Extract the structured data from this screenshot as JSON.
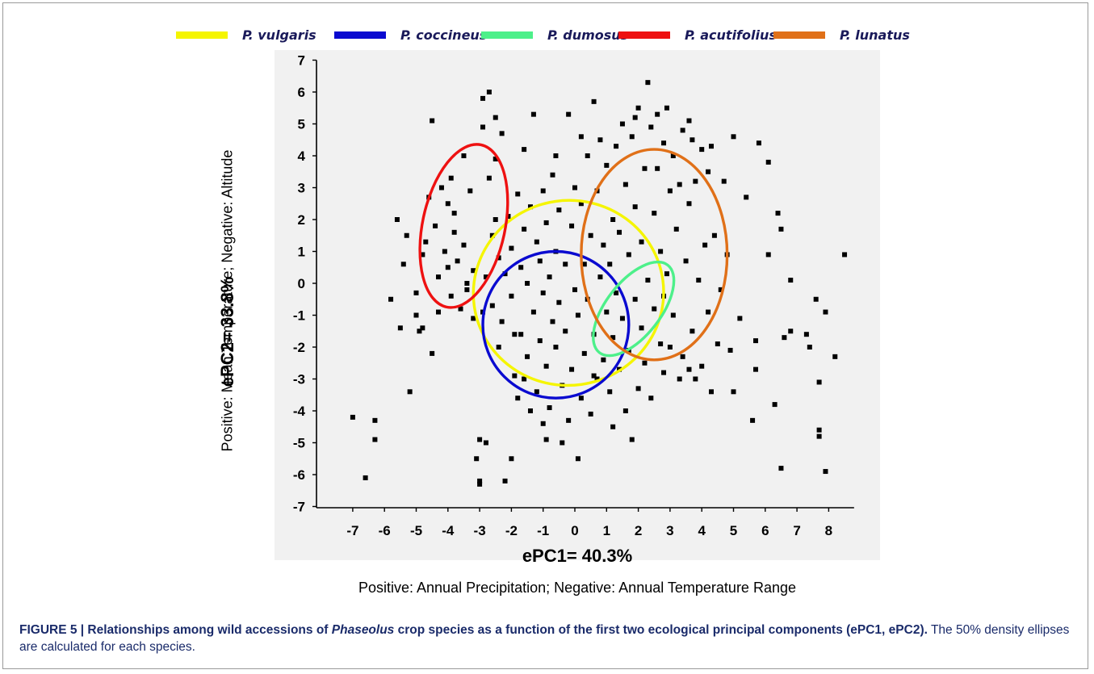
{
  "legend": [
    {
      "label": "P. vulgaris",
      "color": "#f5f500"
    },
    {
      "label": "P. coccineus",
      "color": "#0a0ad0"
    },
    {
      "label": "P. dumosus",
      "color": "#4df08a"
    },
    {
      "label": "P. acutifolius",
      "color": "#ee1111"
    },
    {
      "label": "P. lunatus",
      "color": "#e07018"
    }
  ],
  "axes": {
    "xlabel": "ePC1= 40.3%",
    "xsub": "Positive: Annual Precipitation; Negative: Annual Temperature Range",
    "ylabel": "ePC2= 33.8%",
    "ysub": "Positive: Mean Temperature; Negative: Altitude"
  },
  "caption": {
    "bold_prefix": "FIGURE 5 | Relationships among wild accessions of ",
    "bold_italic": "Phaseolus",
    "bold_suffix": " crop species as a function of the first two ecological principal components (ePC1, ePC2).",
    "rest": " The 50% density ellipses are calculated for each species."
  },
  "chart_data": {
    "type": "scatter",
    "xlabel": "ePC1= 40.3%",
    "ylabel": "ePC2= 33.8%",
    "xlim": [
      -7.6,
      8.8
    ],
    "ylim": [
      -7,
      7
    ],
    "xticks": [
      -7,
      -6,
      -5,
      -4,
      -3,
      -2,
      -1,
      0,
      1,
      2,
      3,
      4,
      5,
      6,
      7,
      8
    ],
    "yticks": [
      7,
      6,
      5,
      4,
      3,
      2,
      1,
      0,
      -1,
      -2,
      -3,
      -4,
      -5,
      -6,
      -7
    ],
    "grid": false,
    "legend_position": "top",
    "ellipses": [
      {
        "species": "P. vulgaris",
        "color": "#f5f500",
        "cx": -0.2,
        "cy": -0.3,
        "rx": 3.0,
        "ry": 2.9,
        "angle": 8
      },
      {
        "species": "P. coccineus",
        "color": "#0a0ad0",
        "cx": -0.6,
        "cy": -1.3,
        "rx": 2.3,
        "ry": 2.3,
        "angle": 0
      },
      {
        "species": "P. dumosus",
        "color": "#4df08a",
        "cx": 1.85,
        "cy": -0.8,
        "rx": 1.75,
        "ry": 0.85,
        "angle": 52
      },
      {
        "species": "P. acutifolius",
        "color": "#ee1111",
        "cx": -3.5,
        "cy": 1.8,
        "rx": 1.3,
        "ry": 2.6,
        "angle": -12
      },
      {
        "species": "P. lunatus",
        "color": "#e07018",
        "cx": 2.5,
        "cy": 0.9,
        "rx": 2.3,
        "ry": 3.3,
        "angle": 0
      }
    ],
    "points": [
      [
        -7.0,
        -4.2
      ],
      [
        -6.6,
        -6.1
      ],
      [
        -6.3,
        -4.3
      ],
      [
        -6.3,
        -4.9
      ],
      [
        -5.8,
        -0.5
      ],
      [
        -5.6,
        2.0
      ],
      [
        -5.5,
        -1.4
      ],
      [
        -5.4,
        0.6
      ],
      [
        -5.3,
        1.5
      ],
      [
        -5.2,
        -3.4
      ],
      [
        -5.0,
        -0.3
      ],
      [
        -5.0,
        -1.0
      ],
      [
        -4.9,
        -1.5
      ],
      [
        -4.8,
        0.9
      ],
      [
        -4.7,
        1.3
      ],
      [
        -4.6,
        2.7
      ],
      [
        -4.5,
        5.1
      ],
      [
        -4.5,
        -2.2
      ],
      [
        -4.4,
        1.8
      ],
      [
        -4.3,
        0.2
      ],
      [
        -4.3,
        -0.9
      ],
      [
        -4.2,
        3.0
      ],
      [
        -4.1,
        1.0
      ],
      [
        -4.0,
        2.5
      ],
      [
        -4.0,
        0.5
      ],
      [
        -3.9,
        -0.4
      ],
      [
        -3.8,
        1.6
      ],
      [
        -3.8,
        2.2
      ],
      [
        -3.7,
        0.7
      ],
      [
        -3.6,
        -0.8
      ],
      [
        -3.5,
        4.0
      ],
      [
        -3.5,
        1.2
      ],
      [
        -3.4,
        0.0
      ],
      [
        -3.3,
        2.9
      ],
      [
        -3.2,
        0.4
      ],
      [
        -3.2,
        -1.1
      ],
      [
        -3.1,
        -5.5
      ],
      [
        -3.0,
        -4.9
      ],
      [
        -3.0,
        -6.2
      ],
      [
        -3.0,
        -6.3
      ],
      [
        -2.9,
        4.9
      ],
      [
        -2.9,
        5.8
      ],
      [
        -2.8,
        0.2
      ],
      [
        -2.8,
        -5.0
      ],
      [
        -2.7,
        6.0
      ],
      [
        -2.7,
        3.3
      ],
      [
        -2.6,
        1.5
      ],
      [
        -2.6,
        -0.7
      ],
      [
        -2.5,
        5.2
      ],
      [
        -2.5,
        2.0
      ],
      [
        -2.4,
        0.8
      ],
      [
        -2.4,
        -2.0
      ],
      [
        -2.3,
        4.7
      ],
      [
        -2.3,
        -1.2
      ],
      [
        -2.2,
        0.3
      ],
      [
        -2.2,
        -6.2
      ],
      [
        -2.1,
        2.1
      ],
      [
        -2.0,
        -5.5
      ],
      [
        -2.0,
        -0.4
      ],
      [
        -2.0,
        1.1
      ],
      [
        -1.9,
        -2.9
      ],
      [
        -1.8,
        2.8
      ],
      [
        -1.8,
        -3.6
      ],
      [
        -1.7,
        0.5
      ],
      [
        -1.7,
        -1.6
      ],
      [
        -1.6,
        1.7
      ],
      [
        -1.6,
        -3.0
      ],
      [
        -1.5,
        0.0
      ],
      [
        -1.5,
        -2.3
      ],
      [
        -1.4,
        -4.0
      ],
      [
        -1.4,
        2.4
      ],
      [
        -1.3,
        5.3
      ],
      [
        -1.3,
        -0.9
      ],
      [
        -1.2,
        1.3
      ],
      [
        -1.2,
        -3.4
      ],
      [
        -1.1,
        -1.8
      ],
      [
        -1.1,
        0.7
      ],
      [
        -1.0,
        -4.4
      ],
      [
        -1.0,
        2.9
      ],
      [
        -1.0,
        -0.3
      ],
      [
        -0.9,
        1.9
      ],
      [
        -0.9,
        -2.6
      ],
      [
        -0.8,
        0.2
      ],
      [
        -0.8,
        -3.9
      ],
      [
        -0.7,
        3.4
      ],
      [
        -0.7,
        -1.2
      ],
      [
        -0.6,
        1.0
      ],
      [
        -0.6,
        -2.0
      ],
      [
        -0.5,
        -0.6
      ],
      [
        -0.5,
        2.3
      ],
      [
        -0.4,
        -3.2
      ],
      [
        -0.4,
        -5.0
      ],
      [
        -0.3,
        0.6
      ],
      [
        -0.3,
        -1.5
      ],
      [
        -0.2,
        5.3
      ],
      [
        -0.2,
        -4.3
      ],
      [
        -0.1,
        1.8
      ],
      [
        -0.1,
        -2.7
      ],
      [
        0.0,
        -0.2
      ],
      [
        0.0,
        3.0
      ],
      [
        0.1,
        -5.5
      ],
      [
        0.1,
        -1.0
      ],
      [
        0.2,
        2.5
      ],
      [
        0.2,
        -3.6
      ],
      [
        0.3,
        0.6
      ],
      [
        0.3,
        -2.2
      ],
      [
        0.4,
        4.0
      ],
      [
        0.4,
        -0.5
      ],
      [
        0.5,
        -4.1
      ],
      [
        0.5,
        1.5
      ],
      [
        0.6,
        5.7
      ],
      [
        0.6,
        -1.6
      ],
      [
        0.7,
        2.9
      ],
      [
        0.7,
        -3.0
      ],
      [
        0.8,
        0.2
      ],
      [
        0.8,
        4.5
      ],
      [
        0.9,
        -2.4
      ],
      [
        0.9,
        1.2
      ],
      [
        1.0,
        -0.9
      ],
      [
        1.0,
        3.7
      ],
      [
        1.1,
        -3.4
      ],
      [
        1.1,
        0.6
      ],
      [
        1.2,
        2.0
      ],
      [
        1.2,
        -1.7
      ],
      [
        1.3,
        4.3
      ],
      [
        1.3,
        -0.3
      ],
      [
        1.4,
        -2.7
      ],
      [
        1.4,
        1.6
      ],
      [
        1.5,
        5.0
      ],
      [
        1.5,
        -1.1
      ],
      [
        1.6,
        3.1
      ],
      [
        1.6,
        -4.0
      ],
      [
        1.7,
        0.9
      ],
      [
        1.7,
        -2.1
      ],
      [
        1.8,
        4.6
      ],
      [
        1.8,
        -4.9
      ],
      [
        1.9,
        -0.5
      ],
      [
        1.9,
        2.4
      ],
      [
        2.0,
        -3.3
      ],
      [
        2.0,
        5.5
      ],
      [
        2.1,
        1.3
      ],
      [
        2.1,
        -1.4
      ],
      [
        2.2,
        3.6
      ],
      [
        2.2,
        -2.5
      ],
      [
        2.3,
        0.1
      ],
      [
        2.3,
        6.3
      ],
      [
        2.4,
        4.9
      ],
      [
        2.4,
        -3.6
      ],
      [
        2.5,
        2.2
      ],
      [
        2.5,
        -0.8
      ],
      [
        2.6,
        5.3
      ],
      [
        2.6,
        3.6
      ],
      [
        2.7,
        -1.9
      ],
      [
        2.7,
        1.0
      ],
      [
        2.8,
        4.4
      ],
      [
        2.8,
        -2.8
      ],
      [
        2.9,
        5.5
      ],
      [
        2.9,
        0.3
      ],
      [
        3.0,
        2.9
      ],
      [
        3.0,
        -2.0
      ],
      [
        3.1,
        4.0
      ],
      [
        3.1,
        -1.0
      ],
      [
        3.2,
        1.7
      ],
      [
        3.3,
        -3.0
      ],
      [
        3.3,
        3.1
      ],
      [
        3.4,
        4.8
      ],
      [
        3.4,
        -2.3
      ],
      [
        3.5,
        0.7
      ],
      [
        3.6,
        -2.7
      ],
      [
        3.6,
        2.5
      ],
      [
        3.7,
        4.5
      ],
      [
        3.7,
        -1.5
      ],
      [
        3.8,
        3.2
      ],
      [
        3.8,
        -3.0
      ],
      [
        3.9,
        0.1
      ],
      [
        4.0,
        4.2
      ],
      [
        4.0,
        -2.6
      ],
      [
        4.1,
        1.2
      ],
      [
        4.2,
        -0.9
      ],
      [
        4.2,
        3.5
      ],
      [
        4.3,
        -3.4
      ],
      [
        4.4,
        1.5
      ],
      [
        4.5,
        -1.9
      ],
      [
        4.6,
        -0.2
      ],
      [
        4.7,
        3.2
      ],
      [
        4.8,
        0.9
      ],
      [
        4.9,
        -2.1
      ],
      [
        5.0,
        4.6
      ],
      [
        5.0,
        -3.4
      ],
      [
        5.2,
        -1.1
      ],
      [
        5.4,
        2.7
      ],
      [
        5.6,
        -4.3
      ],
      [
        5.7,
        -1.8
      ],
      [
        5.7,
        -2.7
      ],
      [
        5.8,
        4.4
      ],
      [
        6.1,
        3.8
      ],
      [
        6.1,
        0.9
      ],
      [
        6.3,
        -3.8
      ],
      [
        6.4,
        2.2
      ],
      [
        6.5,
        1.7
      ],
      [
        6.5,
        -5.8
      ],
      [
        6.6,
        -1.7
      ],
      [
        6.8,
        0.1
      ],
      [
        6.8,
        -1.5
      ],
      [
        7.3,
        -1.6
      ],
      [
        7.4,
        -2.0
      ],
      [
        7.6,
        -0.5
      ],
      [
        7.7,
        -3.1
      ],
      [
        7.7,
        -4.6
      ],
      [
        7.7,
        -4.8
      ],
      [
        7.9,
        -0.9
      ],
      [
        7.9,
        -5.9
      ],
      [
        8.2,
        -2.3
      ],
      [
        8.5,
        0.9
      ],
      [
        -3.4,
        -0.2
      ],
      [
        -2.9,
        -0.9
      ],
      [
        -1.6,
        4.2
      ],
      [
        0.2,
        4.6
      ],
      [
        1.9,
        5.2
      ],
      [
        -0.6,
        4.0
      ],
      [
        -2.5,
        3.9
      ],
      [
        -0.9,
        -4.9
      ],
      [
        1.2,
        -4.5
      ],
      [
        3.6,
        5.1
      ],
      [
        4.3,
        4.3
      ],
      [
        -4.8,
        -1.4
      ],
      [
        -3.9,
        3.3
      ],
      [
        -1.9,
        -1.6
      ],
      [
        2.8,
        -0.4
      ],
      [
        0.6,
        -2.9
      ]
    ]
  }
}
